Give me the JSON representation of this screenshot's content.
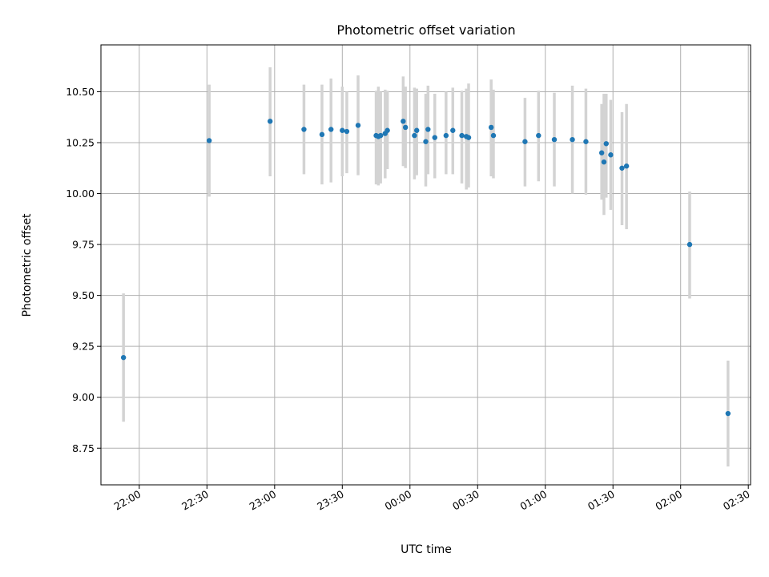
{
  "chart_data": {
    "type": "scatter",
    "title": "Photometric offset variation",
    "xlabel": "UTC time",
    "ylabel": "Photometric offset",
    "x_unit": "UTC time (HH:MM, 24h, spanning midnight)",
    "xlim": [
      "21:43",
      "02:31"
    ],
    "ylim": [
      8.57,
      10.73
    ],
    "x_ticks": [
      "22:00",
      "22:30",
      "23:00",
      "23:30",
      "00:00",
      "00:30",
      "01:00",
      "01:30",
      "02:00",
      "02:30"
    ],
    "y_ticks": [
      8.75,
      9.0,
      9.25,
      9.5,
      9.75,
      10.0,
      10.25,
      10.5
    ],
    "y_tick_labels": [
      "8.75",
      "9.00",
      "9.25",
      "9.50",
      "9.75",
      "10.00",
      "10.25",
      "10.50"
    ],
    "grid": true,
    "colors": {
      "points": "#1f77b4",
      "errorbars": "#d3d3d3"
    },
    "series": [
      {
        "x": [
          "21:53",
          "22:31",
          "22:58",
          "23:13",
          "23:21",
          "23:25",
          "23:30",
          "23:32",
          "23:37",
          "23:45",
          "23:46",
          "23:47",
          "23:49",
          "23:50",
          "23:57",
          "23:58",
          "00:02",
          "00:03",
          "00:07",
          "00:08",
          "00:11",
          "00:16",
          "00:19",
          "00:23",
          "00:25",
          "00:26",
          "00:36",
          "00:37",
          "00:51",
          "00:57",
          "01:04",
          "01:12",
          "01:18",
          "01:25",
          "01:26",
          "01:27",
          "01:29",
          "01:34",
          "01:36",
          "02:04",
          "02:21"
        ],
        "y": [
          9.195,
          10.26,
          10.355,
          10.315,
          10.29,
          10.315,
          10.31,
          10.305,
          10.335,
          10.285,
          10.28,
          10.285,
          10.295,
          10.31,
          10.355,
          10.325,
          10.285,
          10.31,
          10.255,
          10.315,
          10.275,
          10.285,
          10.31,
          10.285,
          10.28,
          10.275,
          10.325,
          10.285,
          10.255,
          10.285,
          10.265,
          10.265,
          10.255,
          10.2,
          10.155,
          10.245,
          10.19,
          10.125,
          10.135,
          9.75,
          8.92
        ],
        "yerr_low": [
          8.88,
          9.985,
          10.085,
          10.095,
          10.045,
          10.055,
          10.085,
          10.1,
          10.09,
          10.045,
          10.04,
          10.05,
          10.075,
          10.12,
          10.135,
          10.125,
          10.07,
          10.09,
          10.035,
          10.095,
          10.075,
          10.095,
          10.095,
          10.05,
          10.02,
          10.03,
          10.085,
          10.075,
          10.035,
          10.06,
          10.035,
          10.0,
          9.995,
          9.97,
          9.895,
          9.98,
          9.92,
          9.845,
          9.825,
          9.485,
          8.66
        ],
        "yerr_high": [
          9.51,
          10.535,
          10.62,
          10.535,
          10.535,
          10.565,
          10.525,
          10.5,
          10.58,
          10.505,
          10.525,
          10.5,
          10.51,
          10.505,
          10.575,
          10.525,
          10.52,
          10.515,
          10.49,
          10.53,
          10.49,
          10.5,
          10.52,
          10.505,
          10.515,
          10.54,
          10.56,
          10.51,
          10.47,
          10.505,
          10.495,
          10.53,
          10.515,
          10.44,
          10.49,
          10.49,
          10.46,
          10.4,
          10.44,
          10.01,
          9.18
        ]
      }
    ]
  }
}
